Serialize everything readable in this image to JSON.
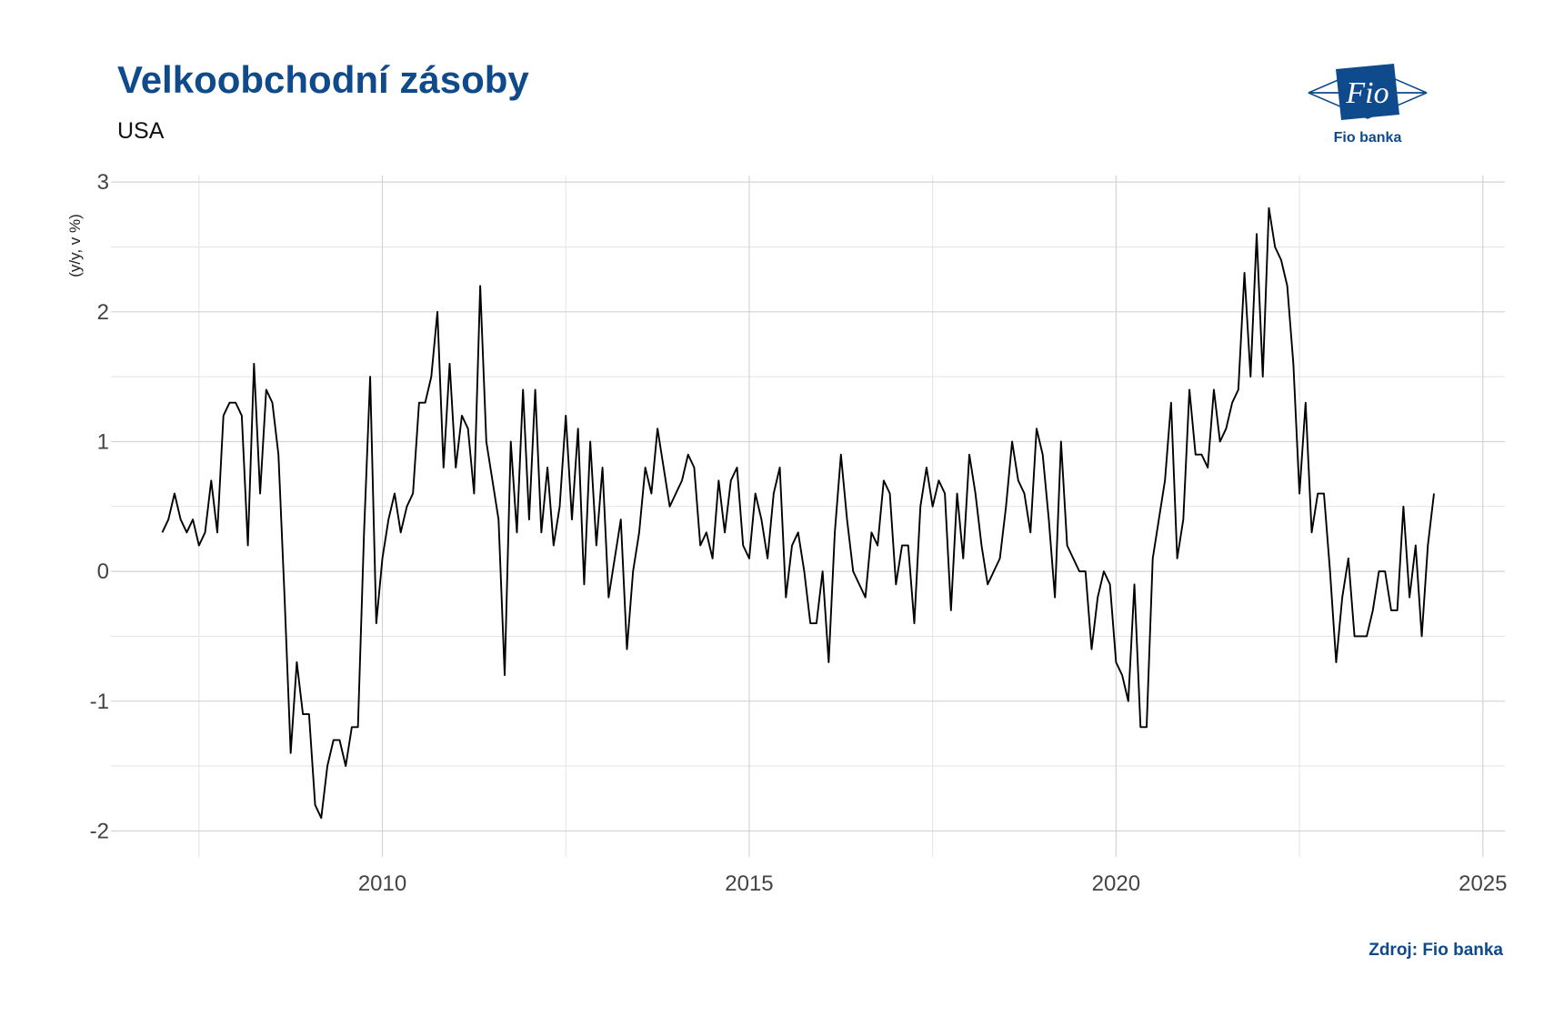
{
  "header": {
    "title": "Velkoobchodní zásoby",
    "subtitle": "USA"
  },
  "logo": {
    "mark_text": "Fio",
    "name": "Fio banka",
    "color": "#0e4a8c"
  },
  "footer": {
    "source": "Zdroj: Fio banka"
  },
  "chart_data": {
    "type": "line",
    "title": "Velkoobchodní zásoby",
    "subtitle": "USA",
    "xlabel": "",
    "ylabel": "(y/y, v %)",
    "xlim": [
      2006.3,
      2025.3
    ],
    "ylim": [
      -2.2,
      3.05
    ],
    "x_ticks": [
      2010,
      2015,
      2020,
      2025
    ],
    "y_ticks": [
      -2,
      -1,
      0,
      1,
      2,
      3
    ],
    "grid": true,
    "line_color": "#000000",
    "series": [
      {
        "start": [
          2007,
          1
        ],
        "frequency": "monthly",
        "values": [
          0.3,
          0.4,
          0.6,
          0.4,
          0.3,
          0.4,
          0.2,
          0.3,
          0.7,
          0.3,
          1.2,
          1.3,
          1.3,
          1.2,
          0.2,
          1.6,
          0.6,
          1.4,
          1.3,
          0.9,
          -0.2,
          -1.4,
          -0.7,
          -1.1,
          -1.1,
          -1.8,
          -1.9,
          -1.5,
          -1.3,
          -1.3,
          -1.5,
          -1.2,
          -1.2,
          0.3,
          1.5,
          -0.4,
          0.1,
          0.4,
          0.6,
          0.3,
          0.5,
          0.6,
          1.3,
          1.3,
          1.5,
          2.0,
          0.8,
          1.6,
          0.8,
          1.2,
          1.1,
          0.6,
          2.2,
          1.0,
          0.7,
          0.4,
          -0.8,
          1.0,
          0.3,
          1.4,
          0.4,
          1.4,
          0.3,
          0.8,
          0.2,
          0.5,
          1.2,
          0.4,
          1.1,
          -0.1,
          1.0,
          0.2,
          0.8,
          -0.2,
          0.1,
          0.4,
          -0.6,
          0.0,
          0.3,
          0.8,
          0.6,
          1.1,
          0.8,
          0.5,
          0.6,
          0.7,
          0.9,
          0.8,
          0.2,
          0.3,
          0.1,
          0.7,
          0.3,
          0.7,
          0.8,
          0.2,
          0.1,
          0.6,
          0.4,
          0.1,
          0.6,
          0.8,
          -0.2,
          0.2,
          0.3,
          0.0,
          -0.4,
          -0.4,
          0.0,
          -0.7,
          0.3,
          0.9,
          0.4,
          0.0,
          -0.1,
          -0.2,
          0.3,
          0.2,
          0.7,
          0.6,
          -0.1,
          0.2,
          0.2,
          -0.4,
          0.5,
          0.8,
          0.5,
          0.7,
          0.6,
          -0.3,
          0.6,
          0.1,
          0.9,
          0.6,
          0.2,
          -0.1,
          0.0,
          0.1,
          0.5,
          1.0,
          0.7,
          0.6,
          0.3,
          1.1,
          0.9,
          0.4,
          -0.2,
          1.0,
          0.2,
          0.1,
          0.0,
          0.0,
          -0.6,
          -0.2,
          0.0,
          -0.1,
          -0.7,
          -0.8,
          -1.0,
          -0.1,
          -1.2,
          -1.2,
          0.1,
          0.4,
          0.7,
          1.3,
          0.1,
          0.4,
          1.4,
          0.9,
          0.9,
          0.8,
          1.4,
          1.0,
          1.1,
          1.3,
          1.4,
          2.3,
          1.5,
          2.6,
          1.5,
          2.8,
          2.5,
          2.4,
          2.2,
          1.6,
          0.6,
          1.3,
          0.3,
          0.6,
          0.6,
          0.0,
          -0.7,
          -0.2,
          0.1,
          -0.5,
          -0.5,
          -0.5,
          -0.3,
          0.0,
          0.0,
          -0.3,
          -0.3,
          0.5,
          -0.2,
          0.2,
          -0.5,
          0.2,
          0.6
        ]
      }
    ]
  }
}
